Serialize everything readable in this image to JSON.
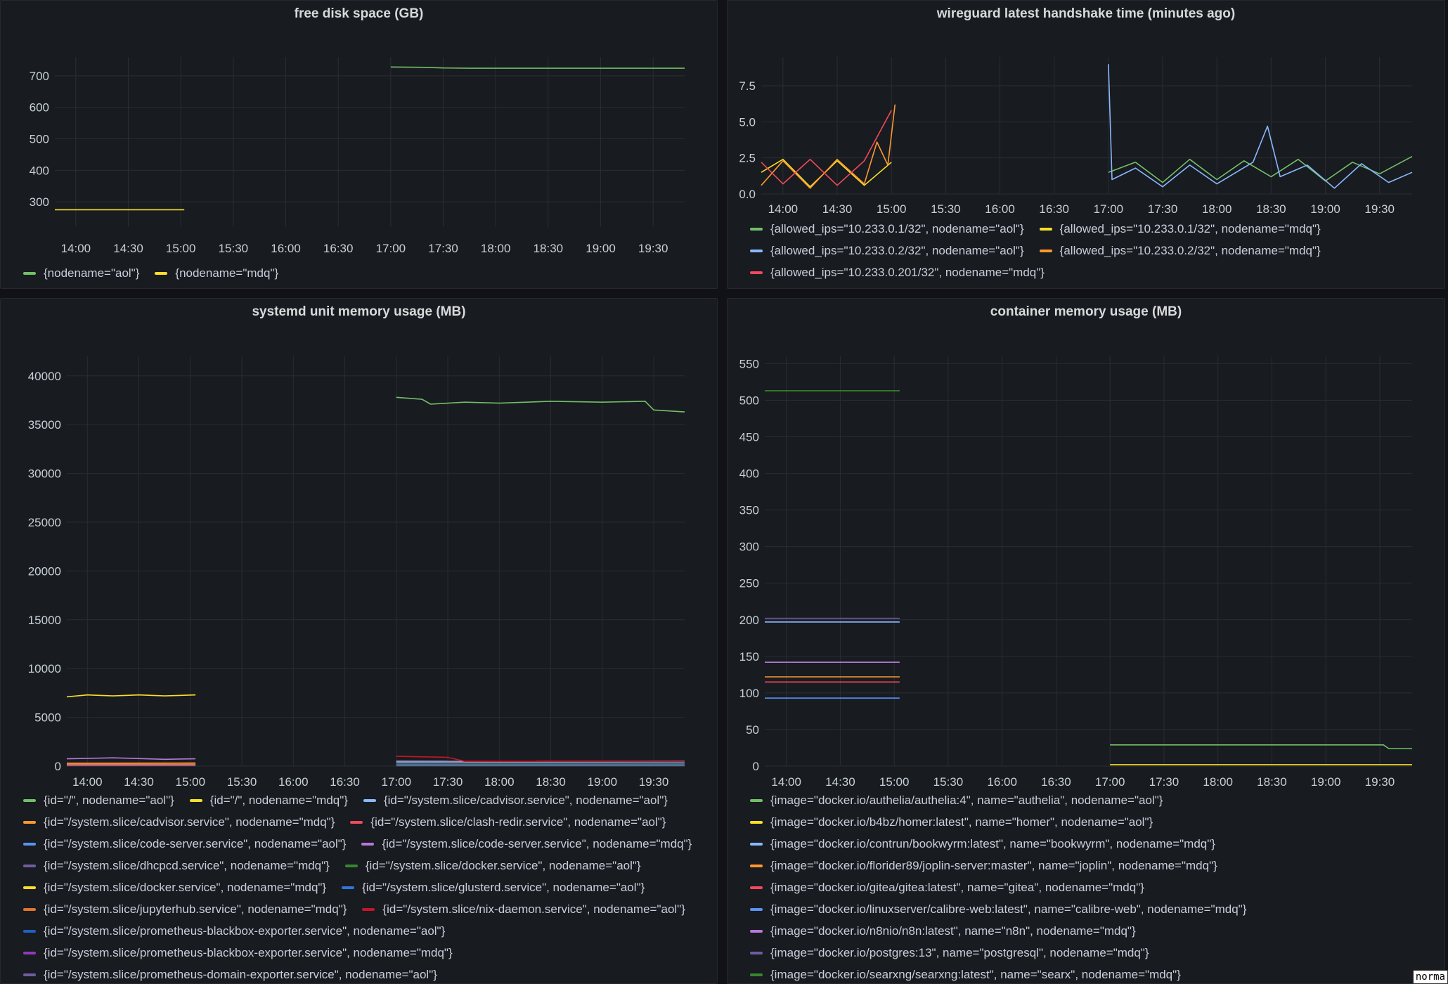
{
  "x_ticks": [
    "14:00",
    "14:30",
    "15:00",
    "15:30",
    "16:00",
    "16:30",
    "17:00",
    "17:30",
    "18:00",
    "18:30",
    "19:00",
    "19:30"
  ],
  "panels": {
    "disk": {
      "title": "free disk space (GB)",
      "chart_data": {
        "type": "line",
        "title": "free disk space (GB)",
        "x_range": [
          "13:48",
          "19:48"
        ],
        "ylim": [
          220,
          760
        ],
        "y_ticks": [
          300,
          400,
          500,
          600,
          700
        ],
        "legend_position": "bottom-left",
        "series": [
          {
            "name": "{nodename=\"aol\"}",
            "color": "#73bf69",
            "points": [
              [
                "17:00",
                728
              ],
              [
                "17:20",
                727
              ],
              [
                "17:30",
                725
              ],
              [
                "17:45",
                724
              ],
              [
                "19:48",
                724
              ]
            ]
          },
          {
            "name": "{nodename=\"mdq\"}",
            "color": "#fade2a",
            "points": [
              [
                "13:48",
                275
              ],
              [
                "15:02",
                275
              ]
            ]
          }
        ]
      }
    },
    "wireguard": {
      "title": "wireguard latest handshake time (minutes ago)",
      "chart_data": {
        "type": "line",
        "title": "wireguard latest handshake time (minutes ago)",
        "x_range": [
          "13:48",
          "19:48"
        ],
        "ylim": [
          0,
          9.5
        ],
        "y_ticks": [
          0.0,
          2.5,
          5.0,
          7.5
        ],
        "y_tick_labels": [
          "0.0",
          "2.5",
          "5.0",
          "7.5"
        ],
        "legend_position": "bottom-left",
        "series": [
          {
            "name": "{allowed_ips=\"10.233.0.1/32\", nodename=\"aol\"}",
            "color": "#73bf69",
            "points": [
              [
                "17:00",
                1.5
              ],
              [
                "17:15",
                2.2
              ],
              [
                "17:30",
                0.8
              ],
              [
                "17:45",
                2.4
              ],
              [
                "18:00",
                1.0
              ],
              [
                "18:15",
                2.3
              ],
              [
                "18:30",
                1.2
              ],
              [
                "18:45",
                2.4
              ],
              [
                "19:00",
                0.9
              ],
              [
                "19:15",
                2.2
              ],
              [
                "19:30",
                1.4
              ],
              [
                "19:48",
                2.6
              ]
            ]
          },
          {
            "name": "{allowed_ips=\"10.233.0.1/32\", nodename=\"mdq\"}",
            "color": "#fade2a",
            "points": [
              [
                "13:48",
                1.5
              ],
              [
                "14:00",
                2.4
              ],
              [
                "14:15",
                0.5
              ],
              [
                "14:30",
                2.3
              ],
              [
                "14:45",
                0.6
              ],
              [
                "15:00",
                2.2
              ]
            ]
          },
          {
            "name": "{allowed_ips=\"10.233.0.2/32\", nodename=\"aol\"}",
            "color": "#8ab8ff",
            "points": [
              [
                "17:00",
                9.0
              ],
              [
                "17:02",
                1.0
              ],
              [
                "17:15",
                1.8
              ],
              [
                "17:30",
                0.5
              ],
              [
                "17:45",
                2.0
              ],
              [
                "18:00",
                0.7
              ],
              [
                "18:20",
                2.2
              ],
              [
                "18:28",
                4.7
              ],
              [
                "18:35",
                1.2
              ],
              [
                "18:50",
                2.0
              ],
              [
                "19:05",
                0.4
              ],
              [
                "19:20",
                2.1
              ],
              [
                "19:35",
                0.8
              ],
              [
                "19:48",
                1.5
              ]
            ]
          },
          {
            "name": "{allowed_ips=\"10.233.0.2/32\", nodename=\"mdq\"}",
            "color": "#ff9830",
            "points": [
              [
                "13:48",
                0.6
              ],
              [
                "14:00",
                2.3
              ],
              [
                "14:15",
                0.4
              ],
              [
                "14:30",
                2.4
              ],
              [
                "14:45",
                0.7
              ],
              [
                "14:52",
                3.6
              ],
              [
                "14:58",
                2.0
              ],
              [
                "15:02",
                6.2
              ]
            ]
          },
          {
            "name": "{allowed_ips=\"10.233.0.201/32\", nodename=\"mdq\"}",
            "color": "#f2495c",
            "points": [
              [
                "13:48",
                2.2
              ],
              [
                "14:00",
                0.7
              ],
              [
                "14:15",
                2.4
              ],
              [
                "14:30",
                0.6
              ],
              [
                "14:45",
                2.3
              ],
              [
                "15:00",
                5.8
              ]
            ]
          }
        ]
      }
    },
    "systemd": {
      "title": "systemd unit memory usage (MB)",
      "chart_data": {
        "type": "line",
        "title": "systemd unit memory usage (MB)",
        "x_range": [
          "13:48",
          "19:48"
        ],
        "ylim": [
          0,
          42000
        ],
        "y_ticks": [
          0,
          5000,
          10000,
          15000,
          20000,
          25000,
          30000,
          35000,
          40000
        ],
        "legend_position": "bottom-left",
        "series": [
          {
            "name": "{id=\"/\", nodename=\"aol\"}",
            "color": "#73bf69",
            "points": [
              [
                "17:00",
                37800
              ],
              [
                "17:15",
                37600
              ],
              [
                "17:20",
                37100
              ],
              [
                "17:40",
                37300
              ],
              [
                "18:00",
                37200
              ],
              [
                "18:30",
                37400
              ],
              [
                "19:00",
                37300
              ],
              [
                "19:25",
                37400
              ],
              [
                "19:30",
                36500
              ],
              [
                "19:48",
                36300
              ]
            ]
          },
          {
            "name": "{id=\"/\", nodename=\"mdq\"}",
            "color": "#fade2a",
            "points": [
              [
                "13:48",
                7100
              ],
              [
                "14:00",
                7300
              ],
              [
                "14:15",
                7200
              ],
              [
                "14:30",
                7300
              ],
              [
                "14:45",
                7200
              ],
              [
                "15:03",
                7300
              ]
            ]
          },
          {
            "name": "{id=\"/system.slice/cadvisor.service\", nodename=\"aol\"}",
            "color": "#8ab8ff",
            "points": [
              [
                "17:00",
                500
              ],
              [
                "19:48",
                480
              ]
            ]
          },
          {
            "name": "{id=\"/system.slice/cadvisor.service\", nodename=\"mdq\"}",
            "color": "#ff9830",
            "points": [
              [
                "13:48",
                300
              ],
              [
                "15:03",
                320
              ]
            ]
          },
          {
            "name": "{id=\"/system.slice/clash-redir.service\", nodename=\"aol\"}",
            "color": "#f2495c",
            "points": [
              [
                "17:00",
                400
              ],
              [
                "19:48",
                380
              ]
            ]
          },
          {
            "name": "{id=\"/system.slice/code-server.service\", nodename=\"aol\"}",
            "color": "#5794f2",
            "points": [
              [
                "17:00",
                350
              ],
              [
                "19:48",
                340
              ]
            ]
          },
          {
            "name": "{id=\"/system.slice/code-server.service\", nodename=\"mdq\"}",
            "color": "#b877d9",
            "points": [
              [
                "13:48",
                750
              ],
              [
                "14:15",
                850
              ],
              [
                "14:45",
                700
              ],
              [
                "15:03",
                750
              ]
            ]
          },
          {
            "name": "{id=\"/system.slice/dhcpcd.service\", nodename=\"mdq\"}",
            "color": "#705da0",
            "points": [
              [
                "13:48",
                80
              ],
              [
                "15:03",
                80
              ]
            ]
          },
          {
            "name": "{id=\"/system.slice/docker.service\", nodename=\"aol\"}",
            "color": "#37872d",
            "points": [
              [
                "17:00",
                200
              ],
              [
                "19:48",
                200
              ]
            ]
          },
          {
            "name": "{id=\"/system.slice/docker.service\", nodename=\"mdq\"}",
            "color": "#fade2a",
            "points": [
              [
                "13:48",
                150
              ],
              [
                "15:03",
                150
              ]
            ]
          },
          {
            "name": "{id=\"/system.slice/glusterd.service\", nodename=\"aol\"}",
            "color": "#3274d9",
            "points": [
              [
                "17:00",
                100
              ],
              [
                "19:48",
                100
              ]
            ]
          },
          {
            "name": "{id=\"/system.slice/jupyterhub.service\", nodename=\"mdq\"}",
            "color": "#e0752d",
            "points": [
              [
                "13:48",
                200
              ],
              [
                "15:03",
                200
              ]
            ]
          },
          {
            "name": "{id=\"/system.slice/nix-daemon.service\", nodename=\"aol\"}",
            "color": "#c4162a",
            "points": [
              [
                "17:00",
                1000
              ],
              [
                "17:30",
                900
              ],
              [
                "17:40",
                500
              ],
              [
                "19:48",
                450
              ]
            ]
          },
          {
            "name": "{id=\"/system.slice/prometheus-blackbox-exporter.service\", nodename=\"aol\"}",
            "color": "#1f60c4",
            "points": [
              [
                "17:00",
                60
              ],
              [
                "19:48",
                60
              ]
            ]
          },
          {
            "name": "{id=\"/system.slice/prometheus-blackbox-exporter.service\", nodename=\"mdq\"}",
            "color": "#8f3bb8",
            "points": [
              [
                "13:48",
                50
              ],
              [
                "15:03",
                50
              ]
            ]
          },
          {
            "name": "{id=\"/system.slice/prometheus-domain-exporter.service\", nodename=\"aol\"}",
            "color": "#705da0",
            "points": [
              [
                "17:00",
                40
              ],
              [
                "19:48",
                40
              ]
            ]
          }
        ]
      }
    },
    "container": {
      "title": "container memory usage (MB)",
      "chart_data": {
        "type": "line",
        "title": "container memory usage (MB)",
        "x_range": [
          "13:48",
          "19:48"
        ],
        "ylim": [
          0,
          560
        ],
        "y_ticks": [
          0,
          50,
          100,
          150,
          200,
          250,
          300,
          350,
          400,
          450,
          500,
          550
        ],
        "legend_position": "bottom-left",
        "series": [
          {
            "name": "{image=\"docker.io/authelia/authelia:4\", name=\"authelia\", nodename=\"aol\"}",
            "color": "#73bf69",
            "points": [
              [
                "17:00",
                29
              ],
              [
                "19:32",
                29
              ],
              [
                "19:35",
                24
              ],
              [
                "19:48",
                24
              ]
            ]
          },
          {
            "name": "{image=\"docker.io/b4bz/homer:latest\", name=\"homer\", nodename=\"aol\"}",
            "color": "#fade2a",
            "points": [
              [
                "17:00",
                2
              ],
              [
                "19:48",
                2
              ]
            ]
          },
          {
            "name": "{image=\"docker.io/contrun/bookwyrm:latest\", name=\"bookwyrm\", nodename=\"mdq\"}",
            "color": "#8ab8ff",
            "points": [
              [
                "13:48",
                197
              ],
              [
                "15:03",
                197
              ]
            ]
          },
          {
            "name": "{image=\"docker.io/florider89/joplin-server:master\", name=\"joplin\", nodename=\"mdq\"}",
            "color": "#ff9830",
            "points": [
              [
                "13:48",
                122
              ],
              [
                "15:03",
                122
              ]
            ]
          },
          {
            "name": "{image=\"docker.io/gitea/gitea:latest\", name=\"gitea\", nodename=\"mdq\"}",
            "color": "#f2495c",
            "points": [
              [
                "13:48",
                115
              ],
              [
                "15:03",
                115
              ]
            ]
          },
          {
            "name": "{image=\"docker.io/linuxserver/calibre-web:latest\", name=\"calibre-web\", nodename=\"mdq\"}",
            "color": "#5794f2",
            "points": [
              [
                "13:48",
                93
              ],
              [
                "15:03",
                93
              ]
            ]
          },
          {
            "name": "{image=\"docker.io/n8nio/n8n:latest\", name=\"n8n\", nodename=\"mdq\"}",
            "color": "#b877d9",
            "points": [
              [
                "13:48",
                142
              ],
              [
                "15:03",
                142
              ]
            ]
          },
          {
            "name": "{image=\"docker.io/postgres:13\", name=\"postgresql\", nodename=\"mdq\"}",
            "color": "#705da0",
            "points": [
              [
                "13:48",
                202
              ],
              [
                "15:03",
                202
              ]
            ]
          },
          {
            "name": "{image=\"docker.io/searxng/searxng:latest\", name=\"searx\", nodename=\"mdq\"}",
            "color": "#37872d",
            "points": [
              [
                "13:48",
                513
              ],
              [
                "15:03",
                513
              ]
            ]
          }
        ]
      }
    }
  },
  "tooltip_fragment": "norma"
}
